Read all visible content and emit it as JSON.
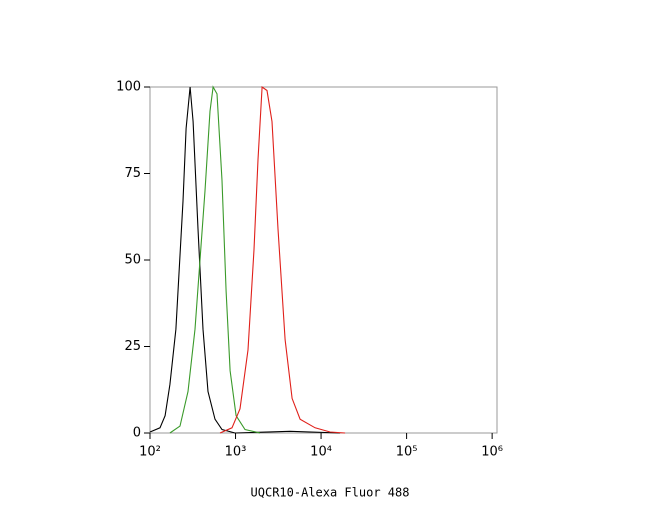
{
  "chart_data": {
    "type": "line",
    "x_label": "UQCR10-Alexa Fluor 488",
    "xscale": "log",
    "xlim": [
      100,
      1140000
    ],
    "xticks": [
      {
        "value": 100,
        "label": "10²"
      },
      {
        "value": 1000,
        "label": "10³"
      },
      {
        "value": 10000,
        "label": "10⁴"
      },
      {
        "value": 100000,
        "label": "10⁵"
      },
      {
        "value": 1000000,
        "label": "10⁶"
      }
    ],
    "ylim": [
      0,
      100
    ],
    "yticks": [
      0,
      25,
      50,
      75,
      100
    ],
    "series": [
      {
        "color": "#000000",
        "x": [
          100,
          131,
          150,
          171,
          201,
          243,
          264,
          294,
          319,
          364,
          417,
          477,
          575,
          695,
          986,
          4330,
          16700
        ],
        "values": [
          0.3,
          1.5,
          5,
          14,
          30,
          67,
          88,
          100,
          90,
          59,
          30,
          12,
          4,
          1,
          0,
          0.5,
          0
        ]
      },
      {
        "color": "#3a9a2a",
        "x": [
          171,
          224,
          278,
          336,
          384,
          440,
          503,
          546,
          608,
          695,
          775,
          863,
          1015,
          1291,
          1935
        ],
        "values": [
          0,
          2,
          12,
          30,
          50,
          70,
          93,
          100,
          98,
          73,
          41,
          18,
          5,
          1,
          0
        ]
      },
      {
        "color": "#e0201a",
        "x": [
          659,
          910,
          1129,
          1400,
          1645,
          1832,
          2042,
          2335,
          2672,
          3141,
          3793,
          4580,
          5680,
          8510,
          12740,
          19100
        ],
        "values": [
          0,
          1.5,
          7,
          24,
          53,
          79,
          100,
          99,
          90,
          59,
          27,
          10,
          4,
          1.5,
          0.3,
          0
        ]
      }
    ]
  }
}
